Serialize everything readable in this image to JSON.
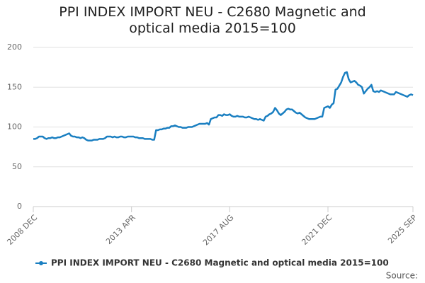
{
  "chart_data": {
    "type": "line",
    "title": "PPI INDEX IMPORT NEU - C2680 Magnetic and optical media 2015=100",
    "source": "Source:",
    "categories": [
      "2008 DEC",
      null,
      null,
      null,
      null,
      null,
      null,
      null,
      null,
      null,
      null,
      null,
      null,
      null,
      null,
      null,
      null,
      null,
      null,
      null,
      null,
      null,
      null,
      null,
      null,
      null,
      null,
      null,
      null,
      null,
      null,
      null,
      null,
      null,
      null,
      null,
      null,
      null,
      null,
      null,
      null,
      null,
      null,
      null,
      null,
      null,
      null,
      null,
      null,
      null,
      null,
      null,
      "2013 APR",
      null,
      null,
      null,
      null,
      null,
      null,
      null,
      null,
      null,
      null,
      null,
      null,
      null,
      null,
      null,
      null,
      null,
      null,
      null,
      null,
      null,
      null,
      null,
      null,
      null,
      null,
      null,
      null,
      null,
      null,
      null,
      null,
      null,
      null,
      null,
      null,
      null,
      null,
      null,
      null,
      null,
      null,
      null,
      null,
      null,
      null,
      null,
      null,
      null,
      null,
      null,
      "2017 AUG",
      null,
      null,
      null,
      null,
      null,
      null,
      null,
      null,
      null,
      null,
      null,
      null,
      null,
      null,
      null,
      null,
      null,
      null,
      null,
      null,
      null,
      null,
      null,
      null,
      null,
      null,
      null,
      null,
      null,
      null,
      null,
      null,
      null,
      null,
      null,
      null,
      null,
      null,
      null,
      null,
      null,
      null,
      null,
      null,
      null,
      null,
      null,
      null,
      null,
      null,
      null,
      "2021 DEC",
      null,
      null,
      null,
      null,
      null,
      null,
      null,
      null,
      null,
      null,
      null,
      null,
      null,
      null,
      null,
      null,
      null,
      null,
      null,
      null,
      null,
      null,
      null,
      null,
      null,
      null,
      null,
      null,
      null,
      null,
      null,
      null,
      null,
      null,
      null,
      null,
      null,
      null,
      null,
      null,
      null,
      null,
      null,
      null,
      "2025 SEP"
    ],
    "series": [
      {
        "name": "PPI INDEX IMPORT NEU - C2680 Magnetic and optical media 2015=100",
        "color": "#1a7fc1",
        "values": [
          85,
          85,
          86,
          88,
          88,
          88,
          86,
          85,
          86,
          86,
          87,
          86,
          86,
          87,
          87,
          88,
          89,
          90,
          91,
          92,
          89,
          88,
          88,
          87,
          87,
          86,
          87,
          86,
          84,
          83,
          83,
          83,
          84,
          84,
          84,
          85,
          85,
          85,
          86,
          88,
          88,
          88,
          87,
          88,
          87,
          87,
          88,
          88,
          87,
          87,
          88,
          88,
          88,
          88,
          87,
          87,
          86,
          86,
          86,
          85,
          85,
          85,
          85,
          84,
          84,
          96,
          96,
          97,
          97,
          98,
          98,
          99,
          99,
          101,
          101,
          102,
          101,
          100,
          100,
          99,
          99,
          99,
          100,
          100,
          100,
          101,
          102,
          103,
          104,
          104,
          104,
          104,
          105,
          103,
          110,
          111,
          112,
          112,
          115,
          115,
          114,
          116,
          115,
          115,
          116,
          114,
          113,
          113,
          114,
          113,
          113,
          113,
          112,
          112,
          113,
          112,
          111,
          110,
          110,
          109,
          110,
          109,
          108,
          113,
          114,
          116,
          117,
          119,
          124,
          121,
          117,
          115,
          117,
          119,
          122,
          123,
          122,
          122,
          120,
          118,
          117,
          118,
          116,
          114,
          112,
          111,
          110,
          110,
          110,
          110,
          111,
          112,
          113,
          113,
          124,
          125,
          126,
          124,
          128,
          130,
          147,
          148,
          152,
          156,
          163,
          168,
          169,
          160,
          156,
          157,
          158,
          156,
          153,
          152,
          150,
          142,
          145,
          148,
          150,
          153,
          145,
          144,
          145,
          144,
          146,
          145,
          144,
          143,
          142,
          141,
          141,
          141,
          144,
          143,
          142,
          141,
          140,
          139,
          138,
          140,
          141,
          140
        ]
      }
    ],
    "ylim": [
      0,
      200
    ],
    "yticks": [
      0,
      50,
      100,
      150,
      200
    ],
    "grid": true
  }
}
